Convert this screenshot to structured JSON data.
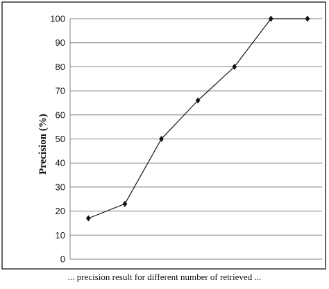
{
  "chart_data": {
    "type": "line",
    "title": "",
    "xlabel": "",
    "ylabel": "Precision (%)",
    "ylim": [
      0,
      100
    ],
    "yticks": [
      "0",
      "10",
      "20",
      "30",
      "40",
      "50",
      "60",
      "70",
      "80",
      "90",
      "100"
    ],
    "grid": true,
    "legend": "none",
    "series": [
      {
        "values": [
          {
            "x": 1,
            "y": 17
          },
          {
            "x": 2,
            "y": 23
          },
          {
            "x": 3,
            "y": 50
          },
          {
            "x": 4,
            "y": 66
          },
          {
            "x": 5,
            "y": 80
          },
          {
            "x": 6,
            "y": 100
          },
          {
            "x": 7,
            "y": 100
          }
        ]
      }
    ],
    "caption": "... precision result for different number of retrieved ..."
  },
  "colors": {
    "line": "#111111",
    "gridline": "#7f7f7f",
    "frame": "#333333"
  }
}
